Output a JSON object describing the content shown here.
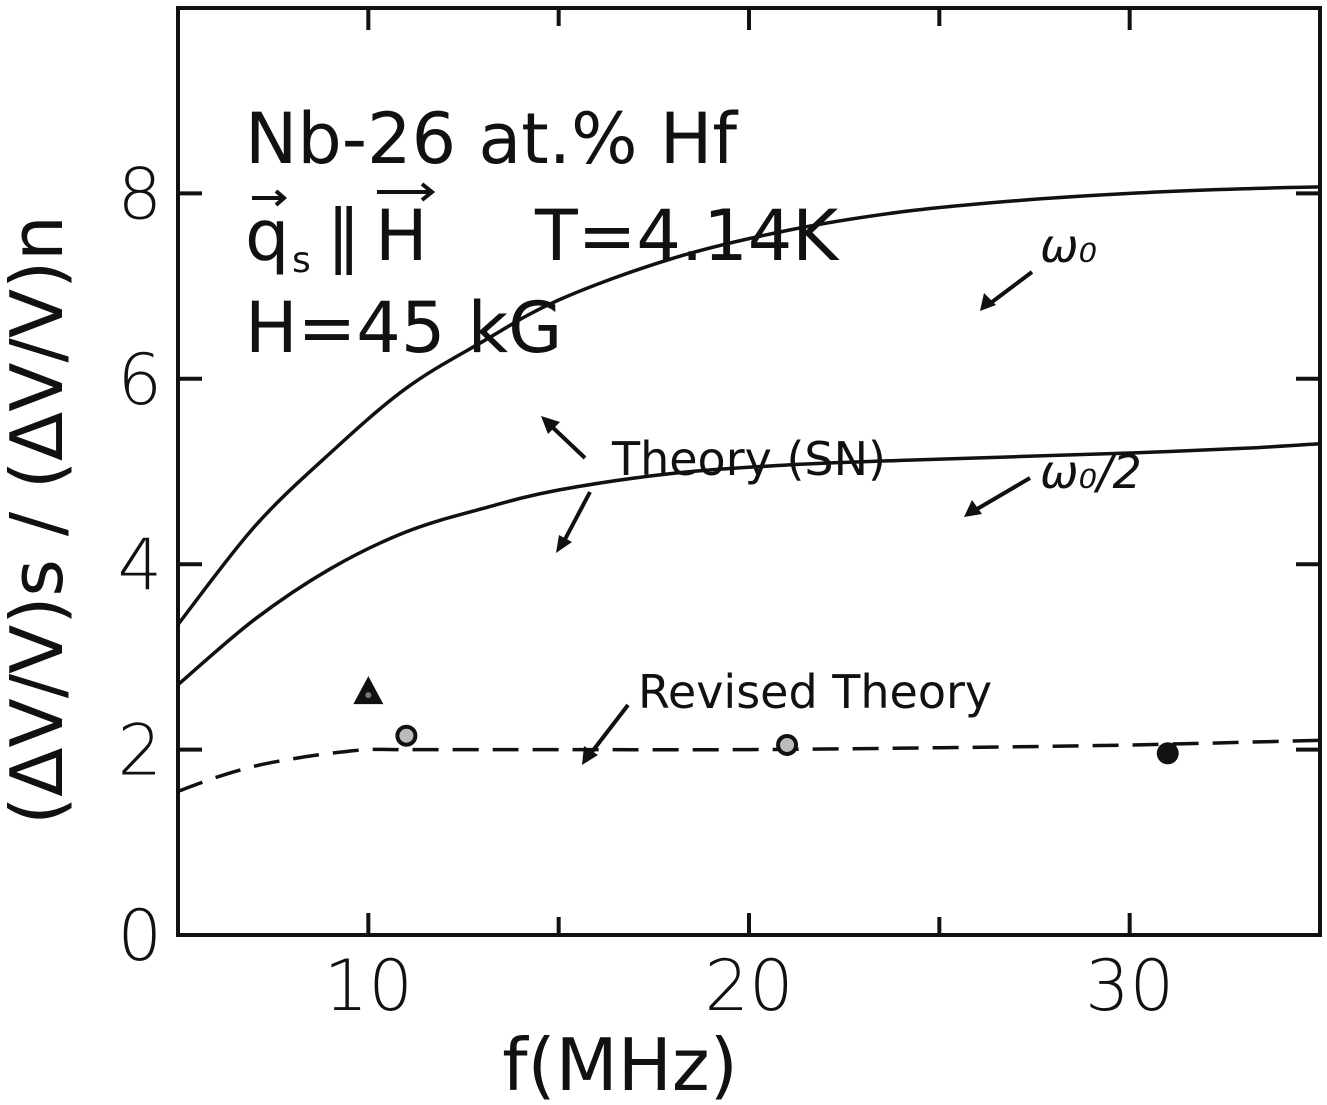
{
  "chart_data": {
    "type": "line",
    "xlabel": "f(MHz)",
    "ylabel": "(ΔV/V)s / (ΔV/V)n",
    "xlim": [
      5,
      35
    ],
    "ylim": [
      0,
      10
    ],
    "x_ticks": [
      10,
      20,
      30
    ],
    "y_ticks": [
      0,
      2,
      4,
      6,
      8
    ],
    "x_tick_labels": [
      "10",
      "20",
      "30"
    ],
    "y_tick_labels": [
      "0",
      "2",
      "4",
      "6",
      "8"
    ],
    "grid": false,
    "legend": "none",
    "annotations": {
      "sample": "Nb-26 at.% Hf",
      "q_symbol": "q",
      "q_subscript": "s",
      "parallel": "∥",
      "h_symbol": "H",
      "temperature": "T=4.14K",
      "field": "H=45 kG",
      "theory_sn": "Theory (SN)",
      "omega0": "ω₀",
      "omega0_half": "ω₀/2",
      "revised": "Revised Theory"
    },
    "series": [
      {
        "label": "ω₀",
        "style": "solid",
        "x": [
          5,
          7,
          9,
          11,
          13,
          15,
          18,
          21,
          24,
          27,
          30,
          33,
          35
        ],
        "y": [
          3.35,
          4.4,
          5.2,
          5.9,
          6.4,
          6.85,
          7.3,
          7.6,
          7.8,
          7.92,
          8.0,
          8.05,
          8.07
        ]
      },
      {
        "label": "ω₀/2",
        "style": "solid",
        "x": [
          5,
          7,
          9,
          11,
          13,
          15,
          18,
          21,
          24,
          27,
          30,
          33,
          35
        ],
        "y": [
          2.7,
          3.4,
          3.95,
          4.35,
          4.6,
          4.8,
          4.98,
          5.07,
          5.12,
          5.16,
          5.2,
          5.25,
          5.3
        ]
      },
      {
        "label": "Revised Theory",
        "style": "dashed",
        "x": [
          5,
          6,
          7,
          8,
          9,
          10,
          11,
          13,
          15,
          20,
          25,
          30,
          35
        ],
        "y": [
          1.55,
          1.7,
          1.82,
          1.9,
          1.96,
          2.0,
          2.0,
          2.0,
          2.0,
          2.0,
          2.02,
          2.05,
          2.1
        ]
      }
    ],
    "points": [
      {
        "marker": "triangle",
        "x": 10.0,
        "y": 2.62
      },
      {
        "marker": "circle-open",
        "x": 11.0,
        "y": 2.15
      },
      {
        "marker": "circle-open",
        "x": 21.0,
        "y": 2.05
      },
      {
        "marker": "circle-filled",
        "x": 31.0,
        "y": 1.96
      }
    ]
  }
}
